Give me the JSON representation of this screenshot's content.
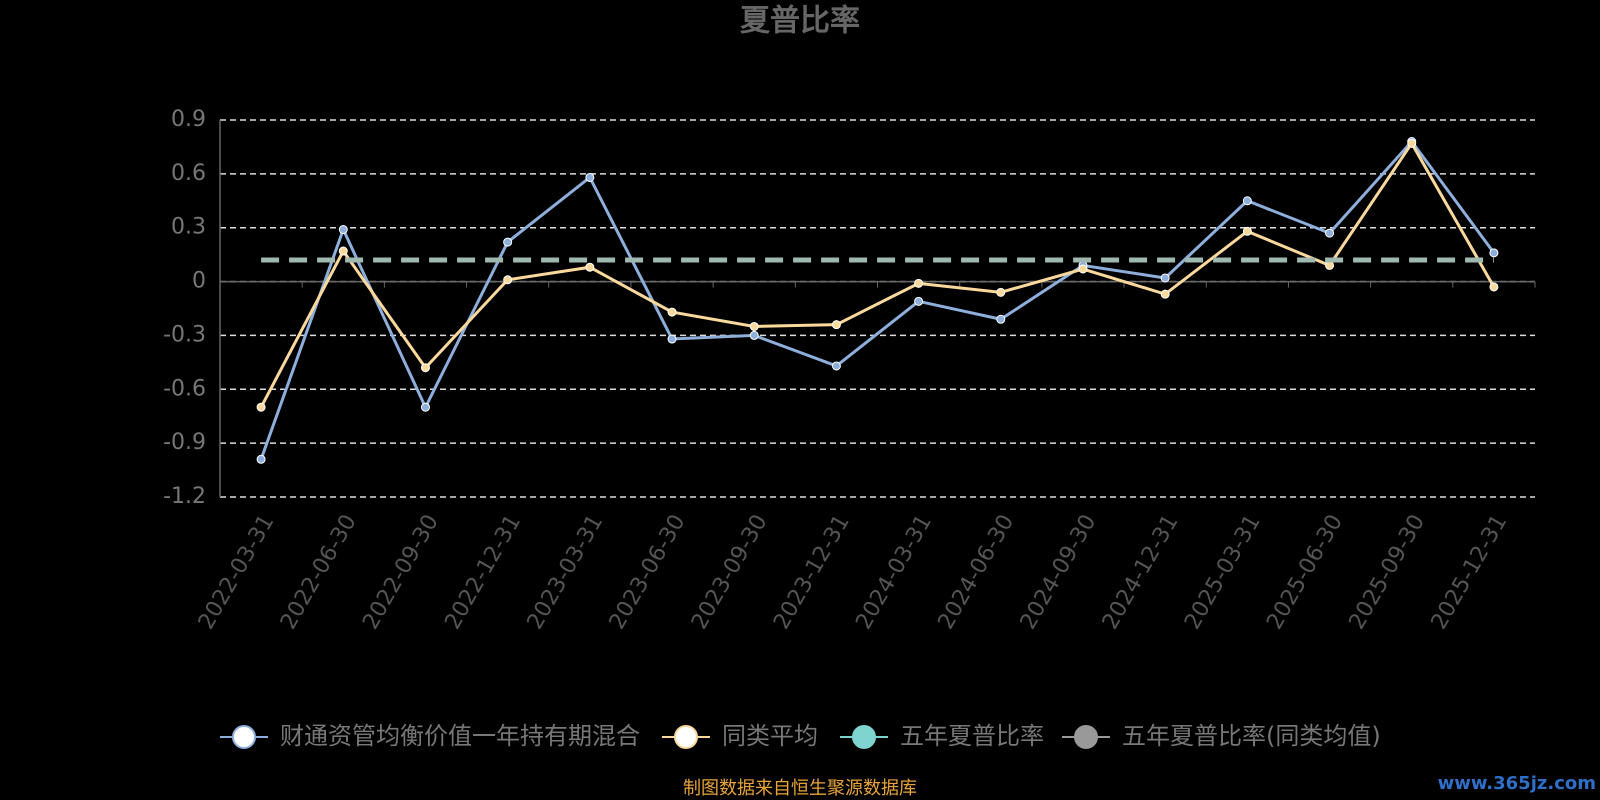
{
  "chart_data": {
    "type": "line",
    "title": "夏普比率",
    "categories": [
      "2022-03-31",
      "2022-06-30",
      "2022-09-30",
      "2022-12-31",
      "2023-03-31",
      "2023-06-30",
      "2023-09-30",
      "2023-12-31",
      "2024-03-31",
      "2024-06-30",
      "2024-09-30",
      "2024-12-31",
      "2025-03-31",
      "2025-06-30",
      "2025-09-30",
      "2025-12-31"
    ],
    "series": [
      {
        "name": "财通资管均衡价值一年持有期混合",
        "color": "#8eaedb",
        "values": [
          -0.99,
          0.29,
          -0.7,
          0.22,
          0.58,
          -0.32,
          -0.3,
          -0.47,
          -0.11,
          -0.21,
          0.09,
          0.02,
          0.45,
          0.27,
          0.78,
          0.16
        ]
      },
      {
        "name": "同类平均",
        "color": "#fbd99c",
        "values": [
          -0.7,
          0.17,
          -0.48,
          0.01,
          0.08,
          -0.17,
          -0.25,
          -0.24,
          -0.01,
          -0.06,
          0.07,
          -0.07,
          0.28,
          0.09,
          0.77,
          -0.03
        ]
      },
      {
        "name": "五年夏普比率",
        "color": "#80d4d0",
        "dashed": true,
        "line_color": "#9fb8b0",
        "values": [
          0.12,
          0.12,
          0.12,
          0.12,
          0.12,
          0.12,
          0.12,
          0.12,
          0.12,
          0.12,
          0.12,
          0.12,
          0.12,
          0.12,
          0.12,
          0.12
        ]
      },
      {
        "name": "五年夏普比率(同类均值)",
        "color": "#999999",
        "values": [
          null,
          null,
          null,
          null,
          null,
          null,
          null,
          null,
          null,
          null,
          null,
          null,
          null,
          null,
          null,
          null
        ]
      }
    ],
    "ylim": [
      -1.2,
      0.9
    ],
    "yticks": [
      -1.2,
      -0.9,
      -0.6,
      -0.3,
      0,
      0.3,
      0.6,
      0.9
    ],
    "grid": true,
    "legend": "bottom",
    "source": "制图数据来自恒生聚源数据库",
    "watermark": "www.365jz.com"
  }
}
